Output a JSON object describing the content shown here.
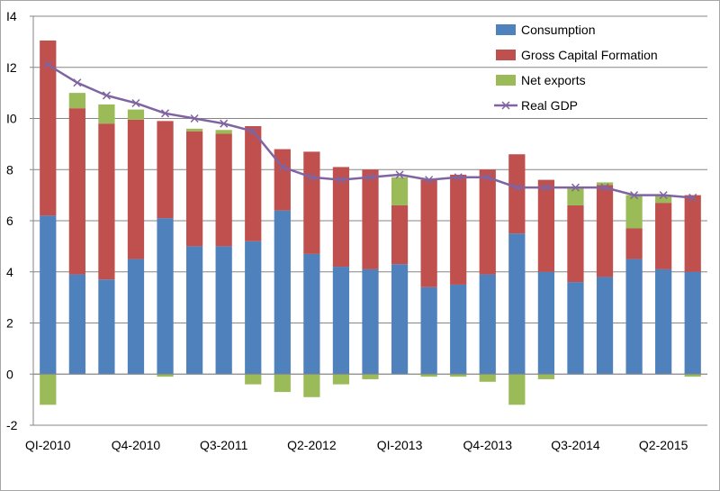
{
  "chart_data": {
    "type": "bar",
    "stacked": true,
    "categories": [
      "Q1-2010",
      "Q2-2010",
      "Q3-2010",
      "Q4-2010",
      "Q1-2011",
      "Q2-2011",
      "Q3-2011",
      "Q4-2011",
      "Q1-2012",
      "Q2-2012",
      "Q3-2012",
      "Q4-2012",
      "Q1-2013",
      "Q2-2013",
      "Q3-2013",
      "Q4-2013",
      "Q1-2014",
      "Q2-2014",
      "Q3-2014",
      "Q4-2014",
      "Q1-2015",
      "Q2-2015",
      "Q3-2015"
    ],
    "x_tick_labels": [
      "QI-2010",
      "Q4-2010",
      "Q3-2011",
      "Q2-2012",
      "QI-2013",
      "Q4-2013",
      "Q3-2014",
      "Q2-2015"
    ],
    "x_tick_every": 3,
    "series": [
      {
        "name": "Consumption",
        "color": "#4f81bd",
        "values": [
          6.2,
          3.9,
          3.7,
          4.5,
          6.1,
          5.0,
          5.0,
          5.2,
          6.4,
          4.7,
          4.2,
          4.1,
          4.3,
          3.4,
          3.5,
          3.9,
          5.5,
          4.0,
          3.6,
          3.8,
          4.5,
          4.1,
          4.0
        ]
      },
      {
        "name": "Gross Capital Formation",
        "color": "#c0504d",
        "values": [
          6.85,
          6.5,
          6.1,
          5.45,
          3.8,
          4.5,
          4.4,
          4.5,
          2.4,
          4.0,
          3.9,
          3.9,
          2.3,
          4.2,
          4.3,
          4.1,
          3.1,
          3.6,
          3.0,
          3.6,
          1.2,
          2.6,
          3.0
        ]
      },
      {
        "name": "Net exports",
        "color": "#9bbb59",
        "values": [
          -1.2,
          0.6,
          0.75,
          0.4,
          -0.1,
          0.1,
          0.15,
          -0.4,
          -0.7,
          -0.9,
          -0.4,
          -0.2,
          1.1,
          -0.1,
          -0.1,
          -0.3,
          -1.2,
          -0.2,
          0.7,
          0.1,
          1.3,
          0.3,
          -0.1
        ]
      }
    ],
    "line": {
      "name": "Real GDP",
      "color": "#8064a2",
      "values": [
        12.1,
        11.4,
        10.9,
        10.6,
        10.2,
        10.0,
        9.8,
        9.5,
        8.1,
        7.7,
        7.6,
        7.7,
        7.8,
        7.6,
        7.7,
        7.7,
        7.3,
        7.3,
        7.3,
        7.3,
        7.0,
        7.0,
        6.9
      ]
    },
    "y_ticks": [
      "-2",
      "0",
      "2",
      "4",
      "6",
      "8",
      "I0",
      "I2",
      "I4"
    ],
    "ylim": [
      -2,
      14
    ],
    "title": "",
    "xlabel": "",
    "ylabel": "",
    "legend": [
      "Consumption",
      "Gross Capital Formation",
      "Net exports",
      "Real GDP"
    ],
    "legend_placement": "top-right",
    "grid": true
  }
}
